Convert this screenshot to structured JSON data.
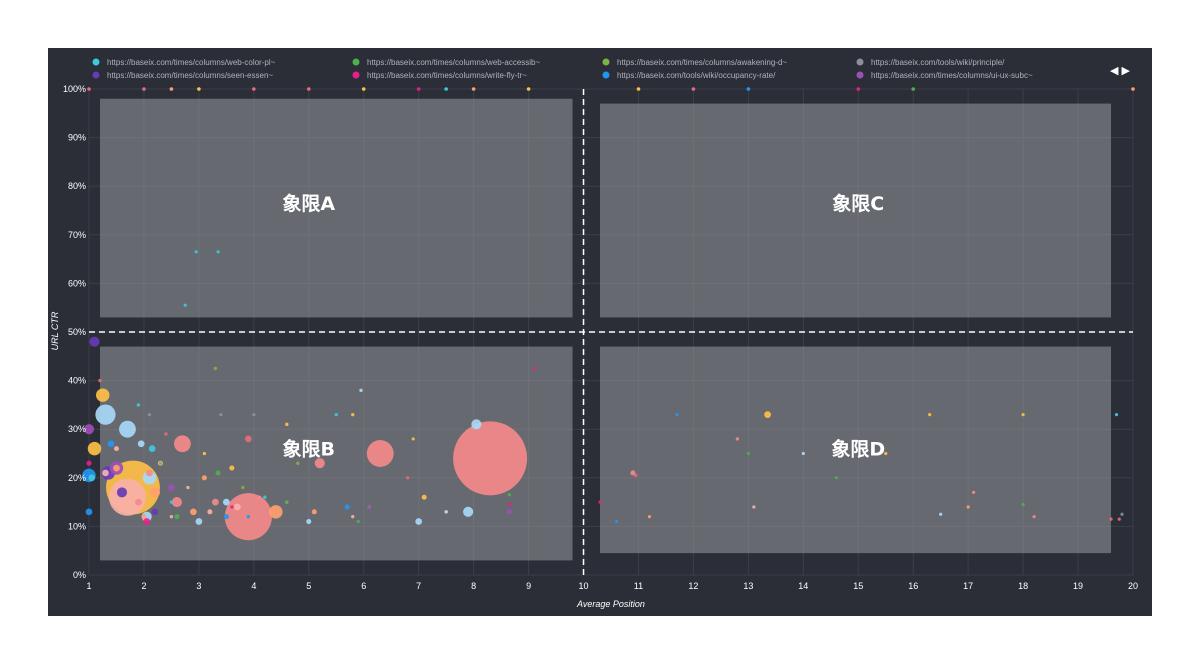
{
  "chart_data": {
    "type": "scatter",
    "title": "",
    "xlabel": "Average Position",
    "ylabel": "URL CTR",
    "xlim": [
      1,
      20
    ],
    "ylim": [
      0,
      100
    ],
    "x_ticks": [
      1,
      2,
      3,
      4,
      5,
      6,
      7,
      8,
      9,
      10,
      11,
      12,
      13,
      14,
      15,
      16,
      17,
      18,
      19,
      20
    ],
    "y_ticks": [
      "0%",
      "10%",
      "20%",
      "30%",
      "40%",
      "50%",
      "60%",
      "70%",
      "80%",
      "90%",
      "100%"
    ],
    "grid": true,
    "legend_position": "top",
    "legend": [
      {
        "label": "https://baseix.com/times/columns/web-color-pl~",
        "color": "#3ec8e0"
      },
      {
        "label": "https://baseix.com/times/columns/web-accessib~",
        "color": "#4caf50"
      },
      {
        "label": "https://baseix.com/times/columns/awakening-d~",
        "color": "#7cb342"
      },
      {
        "label": "https://baseix.com/tools/wiki/principle/",
        "color": "#8a8f99"
      },
      {
        "label": "https://baseix.com/times/columns/seen-essen~",
        "color": "#673ab7"
      },
      {
        "label": "https://baseix.com/times/columns/write-fly-tr~",
        "color": "#e91e8c"
      },
      {
        "label": "https://baseix.com/tools/wiki/occupancy-rate/",
        "color": "#2196f3"
      },
      {
        "label": "https://baseix.com/times/columns/ui-ux-subc~",
        "color": "#9c4fb8"
      }
    ],
    "legend_nav": "◀ ▶",
    "divider": {
      "x": 10,
      "y": 50
    },
    "quadrants": [
      {
        "label": "象限A",
        "x_range": [
          1.2,
          9.8
        ],
        "y_range": [
          53,
          98
        ]
      },
      {
        "label": "象限C",
        "x_range": [
          10.3,
          19.6
        ],
        "y_range": [
          53,
          97
        ]
      },
      {
        "label": "象限B",
        "x_range": [
          1.2,
          9.8
        ],
        "y_range": [
          3,
          47
        ]
      },
      {
        "label": "象限D",
        "x_range": [
          10.3,
          19.6
        ],
        "y_range": [
          4.5,
          47
        ]
      }
    ],
    "series": [
      {
        "color": "#f8b0a8",
        "points": [
          [
            1.7,
            16,
            11
          ],
          [
            3.7,
            14,
            2
          ],
          [
            2.3,
            23,
            1.5
          ],
          [
            1.3,
            21,
            2
          ],
          [
            3.2,
            13,
            1.5
          ],
          [
            2.5,
            12,
            1
          ],
          [
            4.6,
            15,
            1
          ],
          [
            6.1,
            14,
            1
          ],
          [
            1.5,
            26,
            1.5
          ],
          [
            2.8,
            18,
            1
          ],
          [
            7.5,
            13,
            1
          ],
          [
            5.8,
            12,
            1
          ],
          [
            13.1,
            14,
            0.8
          ]
        ]
      },
      {
        "color": "#f48a8a",
        "points": [
          [
            8.3,
            24,
            22
          ],
          [
            3.9,
            12,
            14
          ],
          [
            6.3,
            25,
            8
          ],
          [
            2.7,
            27,
            5
          ],
          [
            3.3,
            15,
            2
          ],
          [
            2.1,
            21,
            2
          ],
          [
            1.9,
            15,
            2
          ],
          [
            5.2,
            23,
            3
          ],
          [
            2.6,
            15,
            3
          ],
          [
            12.8,
            28,
            1
          ],
          [
            10.9,
            21,
            1.5
          ],
          [
            17.1,
            17,
            0.8
          ],
          [
            4.1,
            16,
            1
          ],
          [
            18.2,
            12,
            0.8
          ]
        ]
      },
      {
        "color": "#ffbf47",
        "points": [
          [
            1.8,
            18,
            16
          ],
          [
            1.1,
            26,
            4
          ],
          [
            1.25,
            37,
            4
          ],
          [
            13.35,
            33,
            2
          ],
          [
            4.6,
            31,
            1
          ],
          [
            5.8,
            33,
            1
          ],
          [
            16.3,
            33,
            0.8
          ],
          [
            18,
            33,
            0.8
          ],
          [
            3.6,
            22,
            1.5
          ],
          [
            7.1,
            16,
            1.5
          ],
          [
            3.1,
            25,
            1
          ],
          [
            6.9,
            28,
            0.8
          ],
          [
            15.5,
            25,
            0.8
          ]
        ]
      },
      {
        "color": "#ff9f6b",
        "points": [
          [
            2.2,
            17,
            3
          ],
          [
            4.4,
            13,
            4
          ],
          [
            2.9,
            13,
            2
          ],
          [
            3.1,
            20,
            1.5
          ],
          [
            1.5,
            22,
            2
          ],
          [
            2.0,
            12,
            1.5
          ],
          [
            5.1,
            13,
            1.5
          ],
          [
            17,
            14,
            0.8
          ],
          [
            11.2,
            12,
            0.8
          ]
        ]
      },
      {
        "color": "#a8d8f8",
        "points": [
          [
            1.3,
            33,
            6
          ],
          [
            1.7,
            30,
            5
          ],
          [
            2.1,
            20,
            4
          ],
          [
            8.05,
            31,
            3
          ],
          [
            7.9,
            13,
            3
          ],
          [
            3.0,
            11,
            2
          ],
          [
            7.0,
            11,
            2
          ],
          [
            3.5,
            15,
            2
          ],
          [
            5.95,
            38,
            1
          ],
          [
            2.05,
            12,
            3
          ],
          [
            1.95,
            27,
            2
          ],
          [
            5.0,
            11,
            1.5
          ],
          [
            7.5,
            13,
            1
          ],
          [
            14,
            25,
            0.8
          ],
          [
            16.5,
            12.5,
            0.8
          ]
        ]
      },
      {
        "color": "#3ec8e0",
        "points": [
          [
            2.15,
            26,
            2
          ],
          [
            5.5,
            33,
            1
          ],
          [
            1.9,
            35,
            1
          ],
          [
            2.5,
            15,
            1
          ],
          [
            4.2,
            16,
            1
          ],
          [
            3.35,
            66.5,
            0.8
          ],
          [
            2.95,
            66.5,
            0.8
          ],
          [
            2.75,
            55.5,
            0.8
          ],
          [
            19.7,
            33,
            0.8
          ],
          [
            1.05,
            20,
            2
          ]
        ]
      },
      {
        "color": "#2196f3",
        "points": [
          [
            1.0,
            20.5,
            4
          ],
          [
            1.0,
            13,
            2
          ],
          [
            1.4,
            27,
            2
          ],
          [
            5.7,
            14,
            1.5
          ],
          [
            3.5,
            12,
            1.5
          ],
          [
            11.7,
            33,
            0.8
          ],
          [
            10.6,
            11,
            0.8
          ],
          [
            3.9,
            12,
            1
          ]
        ]
      },
      {
        "color": "#4caf50",
        "points": [
          [
            3.35,
            21,
            1.5
          ],
          [
            2.6,
            12,
            1.5
          ],
          [
            4.6,
            15,
            1
          ],
          [
            5.9,
            11,
            1
          ],
          [
            8.65,
            16.5,
            1
          ],
          [
            13.0,
            25,
            0.8
          ],
          [
            14.6,
            20,
            0.8
          ],
          [
            18,
            14.5,
            0.8
          ]
        ]
      },
      {
        "color": "#7cb342",
        "points": [
          [
            3.3,
            42.5,
            1
          ],
          [
            2.3,
            23,
            1
          ],
          [
            4.8,
            23,
            1
          ],
          [
            3.8,
            18,
            1
          ]
        ]
      },
      {
        "color": "#673ab7",
        "points": [
          [
            1.1,
            48,
            3
          ],
          [
            1.35,
            21,
            4
          ],
          [
            1.6,
            17,
            3
          ],
          [
            2.2,
            13,
            2
          ]
        ]
      },
      {
        "color": "#9c4fb8",
        "points": [
          [
            1.0,
            30,
            3
          ],
          [
            1.5,
            22,
            4
          ],
          [
            2.5,
            18,
            2
          ],
          [
            8.65,
            13,
            1.5
          ],
          [
            6.1,
            14,
            1
          ]
        ]
      },
      {
        "color": "#e91e8c",
        "points": [
          [
            1.0,
            23,
            1.5
          ],
          [
            2.05,
            11,
            2
          ],
          [
            10.3,
            15,
            0.8
          ],
          [
            8.65,
            14.5,
            1
          ],
          [
            9.1,
            42.5,
            0.8
          ],
          [
            5.3,
            25,
            1
          ],
          [
            3.6,
            14,
            1
          ]
        ]
      },
      {
        "color": "#e86a7b",
        "points": [
          [
            1.2,
            40,
            1
          ],
          [
            3.9,
            28,
            2
          ],
          [
            10.95,
            20.5,
            1
          ],
          [
            2.4,
            29,
            1
          ],
          [
            6.8,
            20,
            0.8
          ],
          [
            19.6,
            11.5,
            0.8
          ],
          [
            19.75,
            11.5,
            0.8
          ]
        ]
      },
      {
        "color": "#8a8f99",
        "points": [
          [
            2.1,
            33,
            1
          ],
          [
            4.0,
            33,
            1
          ],
          [
            3.4,
            33,
            1
          ],
          [
            19.8,
            12.5,
            0.8
          ]
        ]
      }
    ],
    "top_markers": [
      {
        "x": 1.0,
        "color": "#e86a7b"
      },
      {
        "x": 2.0,
        "color": "#e86a7b"
      },
      {
        "x": 2.5,
        "color": "#ff9f6b"
      },
      {
        "x": 3.0,
        "color": "#ffbf47"
      },
      {
        "x": 4.0,
        "color": "#e86a7b"
      },
      {
        "x": 5.0,
        "color": "#e86a7b"
      },
      {
        "x": 6.0,
        "color": "#ffbf47"
      },
      {
        "x": 7.0,
        "color": "#e91e8c"
      },
      {
        "x": 7.5,
        "color": "#3ec8e0"
      },
      {
        "x": 8.0,
        "color": "#ff9f6b"
      },
      {
        "x": 9.0,
        "color": "#ffbf47"
      },
      {
        "x": 11.0,
        "color": "#ffbf47"
      },
      {
        "x": 12.0,
        "color": "#e86a7b"
      },
      {
        "x": 13.0,
        "color": "#2196f3"
      },
      {
        "x": 15.0,
        "color": "#e91e8c"
      },
      {
        "x": 16.0,
        "color": "#4caf50"
      },
      {
        "x": 20.0,
        "color": "#ff9f6b"
      }
    ]
  }
}
